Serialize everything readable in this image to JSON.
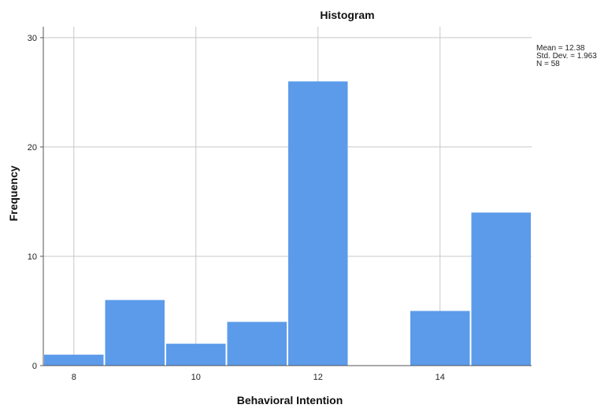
{
  "chart_data": {
    "type": "bar",
    "title": "Histogram",
    "xlabel": "Behavioral Intention",
    "ylabel": "Frequency",
    "bins": [
      {
        "from": 7.5,
        "to": 8.5,
        "value": 1
      },
      {
        "from": 8.5,
        "to": 9.5,
        "value": 6
      },
      {
        "from": 9.5,
        "to": 10.5,
        "value": 2
      },
      {
        "from": 10.5,
        "to": 11.5,
        "value": 4
      },
      {
        "from": 11.5,
        "to": 12.5,
        "value": 26
      },
      {
        "from": 12.5,
        "to": 13.5,
        "value": 0
      },
      {
        "from": 13.5,
        "to": 14.5,
        "value": 5
      },
      {
        "from": 14.5,
        "to": 15.5,
        "value": 14
      }
    ],
    "xlim": [
      7.5,
      15.5
    ],
    "ylim": [
      0,
      31
    ],
    "x_ticks": [
      8,
      10,
      12,
      14
    ],
    "y_ticks": [
      0,
      10,
      20,
      30
    ],
    "grid": true,
    "bar_color": "#5b9bea",
    "stats": {
      "mean": "Mean = 12.38",
      "std": "Std. Dev. = 1.963",
      "n": "N = 58"
    }
  }
}
